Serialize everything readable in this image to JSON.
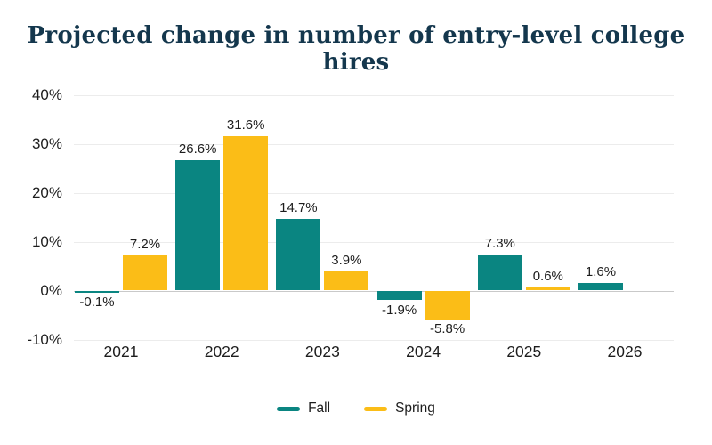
{
  "title": "Projected change in number of entry-level college hires",
  "colors": {
    "fall": "#0a8581",
    "spring": "#fbbd17",
    "title_text": "#14374d",
    "label_text": "#1d1d1d",
    "gridline": "#ececec",
    "zero_line": "#c9c9c9",
    "background": "#ffffff"
  },
  "chart_data": {
    "type": "bar",
    "title": "Projected change in number of entry-level college hires",
    "xlabel": "",
    "ylabel": "",
    "categories": [
      "2021",
      "2022",
      "2023",
      "2024",
      "2025",
      "2026"
    ],
    "series": [
      {
        "name": "Fall",
        "color": "#0a8581",
        "values": [
          -0.1,
          26.6,
          14.7,
          -1.9,
          7.3,
          1.6
        ],
        "labels": [
          "-0.1%",
          "26.6%",
          "14.7%",
          "-1.9%",
          "7.3%",
          "1.6%"
        ]
      },
      {
        "name": "Spring",
        "color": "#fbbd17",
        "values": [
          7.2,
          31.6,
          3.9,
          -5.8,
          0.6,
          null
        ],
        "labels": [
          "7.2%",
          "31.6%",
          "3.9%",
          "-5.8%",
          "0.6%",
          null
        ]
      }
    ],
    "y_ticks": [
      {
        "value": 40,
        "label": "40%"
      },
      {
        "value": 30,
        "label": "30%"
      },
      {
        "value": 20,
        "label": "20%"
      },
      {
        "value": 10,
        "label": "10%"
      },
      {
        "value": 0,
        "label": "0%"
      },
      {
        "value": -10,
        "label": "-10%"
      }
    ],
    "ylim": [
      -10,
      40
    ],
    "grid": "horizontal",
    "legend_position": "bottom"
  }
}
